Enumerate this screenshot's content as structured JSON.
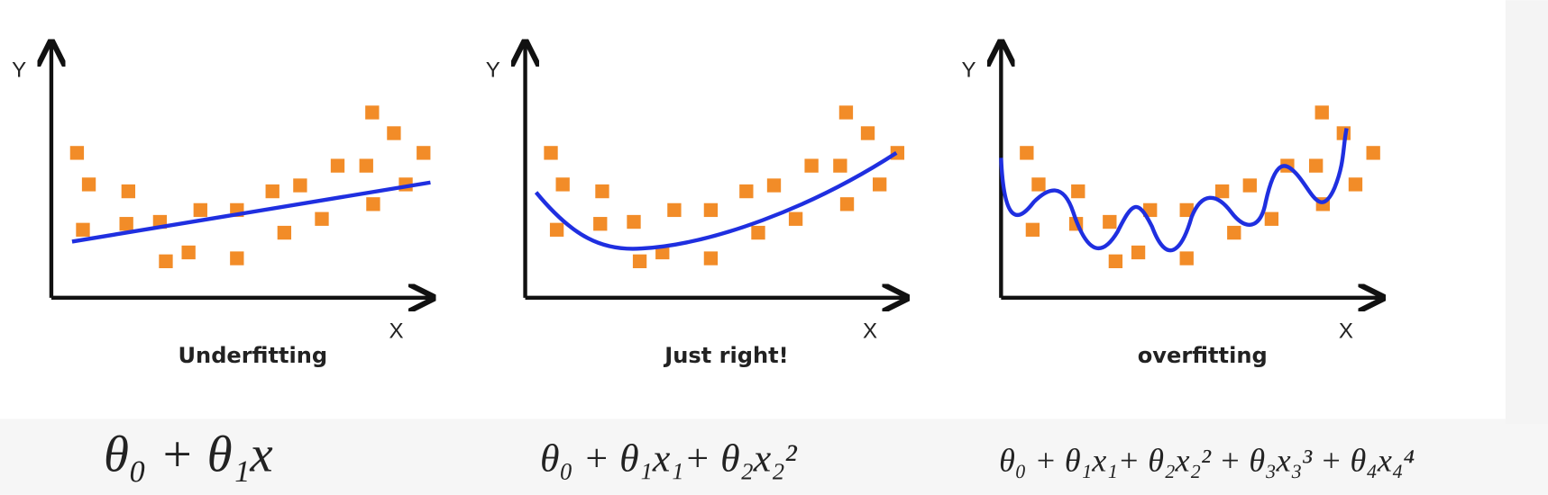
{
  "panels": [
    {
      "y_label": "Y",
      "x_label": "X",
      "caption": "Underfitting",
      "formula": "θ₀ + θ₁x"
    },
    {
      "y_label": "Y",
      "x_label": "X",
      "caption": "Just right!",
      "formula": "θ₀ + θ₁x₁+ θ₂x₂²"
    },
    {
      "y_label": "Y",
      "x_label": "X",
      "caption": "overfitting",
      "formula": "θ₀ + θ₁x₁+ θ₂x₂² + θ₃x₃³ + θ₄x₄⁴"
    }
  ]
}
